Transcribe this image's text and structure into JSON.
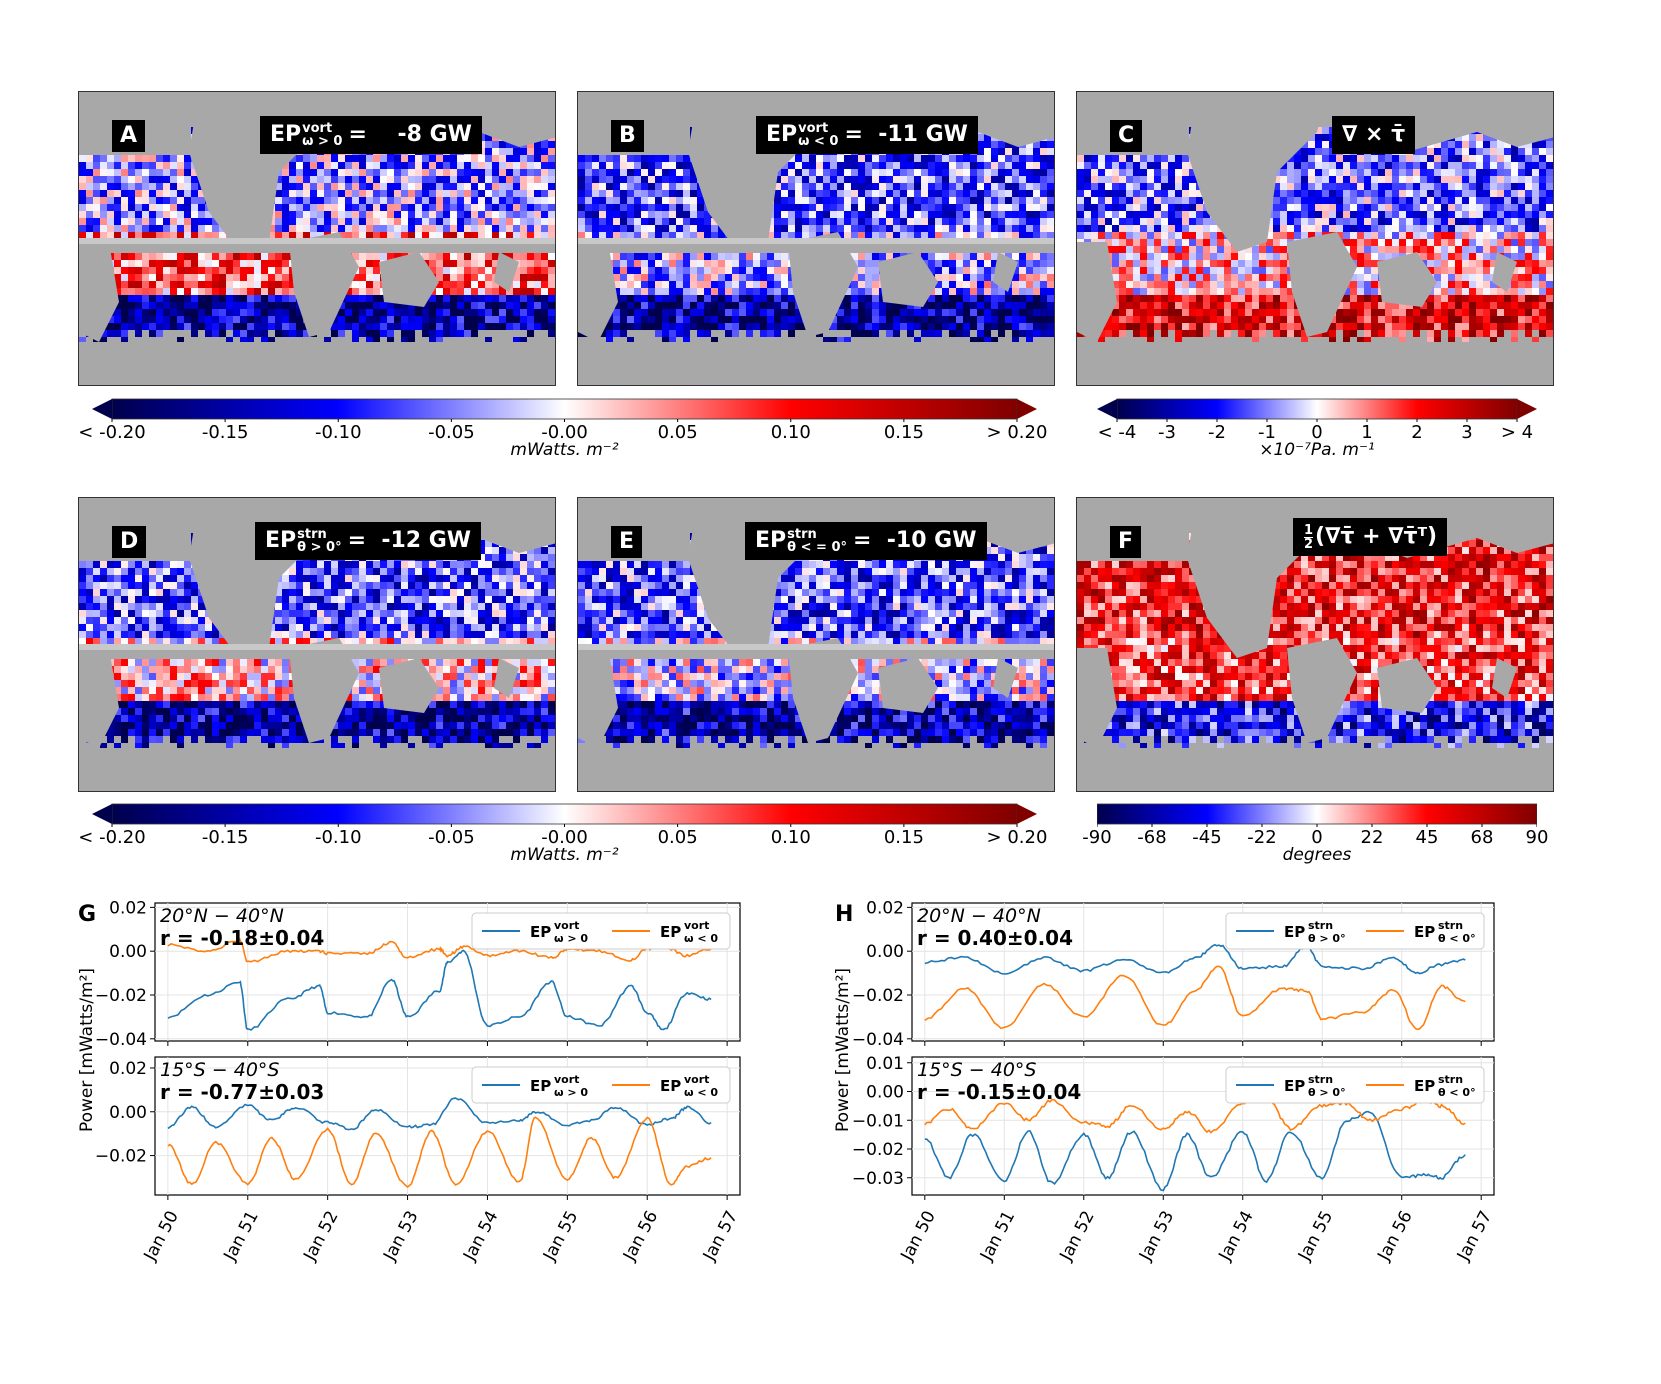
{
  "panels": {
    "A": {
      "letter": "A",
      "ep": "EP",
      "sup": "vort",
      "sub": "ω > 0",
      "eq": "=",
      "value": "-8 GW"
    },
    "B": {
      "letter": "B",
      "ep": "EP",
      "sup": "vort",
      "sub": "ω < 0",
      "eq": "=",
      "value": "-11 GW"
    },
    "C": {
      "letter": "C",
      "title": "∇ × τ̄"
    },
    "D": {
      "letter": "D",
      "ep": "EP",
      "sup": "strn",
      "sub": "θ > 0°",
      "eq": "=",
      "value": "-12 GW"
    },
    "E": {
      "letter": "E",
      "ep": "EP",
      "sup": "strn",
      "sub": "θ < = 0°",
      "eq": "=",
      "value": "-10 GW"
    },
    "F": {
      "letter": "F",
      "title_frac_num": "1",
      "title_frac_den": "2",
      "title": "(∇τ̄ + ∇τ̄ᵀ)"
    },
    "G": {
      "letter": "G"
    },
    "H": {
      "letter": "H"
    }
  },
  "colorbars": {
    "ep_top": {
      "ticks": [
        "< -0.20",
        "-0.15",
        "-0.10",
        "-0.05",
        "-0.00",
        "0.05",
        "0.10",
        "0.15",
        "> 0.20"
      ],
      "label": "mWatts. m⁻²",
      "extend": "both"
    },
    "curl": {
      "ticks": [
        "< -4",
        "-3",
        "-2",
        "-1",
        "0",
        "1",
        "2",
        "3",
        "> 4"
      ],
      "label": "×10⁻⁷Pa. m⁻¹",
      "extend": "both"
    },
    "ep_mid": {
      "ticks": [
        "< -0.20",
        "-0.15",
        "-0.10",
        "-0.05",
        "-0.00",
        "0.05",
        "0.10",
        "0.15",
        "> 0.20"
      ],
      "label": "mWatts. m⁻²",
      "extend": "both"
    },
    "angle": {
      "ticks": [
        "-90",
        "-68",
        "-45",
        "-22",
        "0",
        "22",
        "45",
        "68",
        "90"
      ],
      "label": "degrees",
      "extend": "neither"
    }
  },
  "colors": {
    "blue_series": "#1f77b4",
    "orange_series": "#ff7f0e",
    "land": "#a8a8a8",
    "cmap": [
      "#00004c",
      "#0000ff",
      "#ffffff",
      "#ff0000",
      "#800000"
    ]
  },
  "chart_data": [
    {
      "type": "line",
      "panel": "G-top",
      "region": "20°N − 40°N",
      "r_text": "r = -0.18±0.04",
      "ylabel": "Power [mWatts/m²]",
      "ylim": [
        -0.041,
        0.022
      ],
      "yticks": [
        "0.02",
        "0.00",
        "−0.02",
        "−0.04"
      ],
      "ytick_values": [
        0.02,
        0.0,
        -0.02,
        -0.04
      ],
      "x": [
        50.0,
        50.5,
        50.9,
        51.0,
        51.5,
        51.9,
        52.0,
        52.5,
        52.8,
        53.0,
        53.4,
        53.5,
        53.7,
        54.0,
        54.4,
        54.8,
        55.0,
        55.4,
        55.8,
        56.0,
        56.2,
        56.5,
        56.8
      ],
      "series": [
        {
          "name": "EPvort ω>0",
          "label_main": "EP",
          "label_sup": "vort",
          "label_sub": "ω > 0",
          "color": "#1f77b4",
          "values": [
            -0.03,
            -0.02,
            -0.014,
            -0.036,
            -0.022,
            -0.016,
            -0.028,
            -0.03,
            -0.013,
            -0.03,
            -0.018,
            -0.005,
            0.0,
            -0.034,
            -0.03,
            -0.014,
            -0.03,
            -0.034,
            -0.016,
            -0.028,
            -0.036,
            -0.019,
            -0.022
          ]
        },
        {
          "name": "EPvort ω<0",
          "label_main": "EP",
          "label_sup": "vort",
          "label_sub": "ω < 0",
          "color": "#ff7f0e",
          "values": [
            0.003,
            0.0,
            0.005,
            -0.005,
            0.0,
            0.0,
            -0.001,
            -0.001,
            0.004,
            -0.003,
            0.001,
            -0.002,
            0.002,
            -0.002,
            0.0,
            -0.003,
            0.001,
            0.0,
            -0.004,
            0.001,
            0.002,
            -0.002,
            0.001
          ]
        }
      ]
    },
    {
      "type": "line",
      "panel": "G-bottom",
      "region": "15°S − 40°S",
      "r_text": "r = -0.77±0.03",
      "ylim": [
        -0.038,
        0.025
      ],
      "yticks": [
        "0.02",
        "0.00",
        "−0.02"
      ],
      "ytick_values": [
        0.02,
        0.0,
        -0.02
      ],
      "xticks": [
        "Jan 50",
        "Jan 51",
        "Jan 52",
        "Jan 53",
        "Jan 54",
        "Jan 55",
        "Jan 56",
        "Jan 57"
      ],
      "x": [
        50.0,
        50.3,
        50.6,
        51.0,
        51.3,
        51.6,
        52.0,
        52.3,
        52.6,
        53.0,
        53.3,
        53.6,
        54.0,
        54.4,
        54.6,
        55.0,
        55.3,
        55.6,
        56.0,
        56.3,
        56.5,
        56.8
      ],
      "series": [
        {
          "name": "EPvort ω>0",
          "color": "#1f77b4",
          "values": [
            -0.007,
            0.002,
            -0.007,
            0.003,
            -0.004,
            0.002,
            -0.005,
            -0.008,
            0.001,
            -0.007,
            -0.006,
            0.006,
            -0.005,
            -0.004,
            0.0,
            -0.006,
            -0.004,
            0.002,
            -0.006,
            -0.003,
            0.002,
            -0.005
          ]
        },
        {
          "name": "EPvort ω<0",
          "color": "#ff7f0e",
          "values": [
            -0.015,
            -0.033,
            -0.014,
            -0.033,
            -0.012,
            -0.031,
            -0.008,
            -0.033,
            -0.01,
            -0.034,
            -0.009,
            -0.033,
            -0.009,
            -0.032,
            -0.003,
            -0.031,
            -0.012,
            -0.03,
            -0.003,
            -0.033,
            -0.025,
            -0.021
          ]
        }
      ]
    },
    {
      "type": "line",
      "panel": "H-top",
      "region": "20°N − 40°N",
      "r_text": "r =  0.40±0.04",
      "ylabel": "Power [mWatts/m²]",
      "ylim": [
        -0.041,
        0.022
      ],
      "yticks": [
        "0.02",
        "0.00",
        "−0.02",
        "−0.04"
      ],
      "ytick_values": [
        0.02,
        0.0,
        -0.02,
        -0.04
      ],
      "x": [
        50.0,
        50.5,
        51.0,
        51.5,
        52.0,
        52.5,
        53.0,
        53.4,
        53.7,
        54.0,
        54.5,
        54.8,
        55.0,
        55.5,
        55.9,
        56.2,
        56.5,
        56.8
      ],
      "series": [
        {
          "name": "EPstrn θ>0°",
          "label_main": "EP",
          "label_sup": "strn",
          "label_sub": "θ > 0°",
          "color": "#1f77b4",
          "values": [
            -0.005,
            -0.003,
            -0.01,
            -0.003,
            -0.009,
            -0.004,
            -0.01,
            -0.003,
            0.003,
            -0.008,
            -0.007,
            0.002,
            -0.007,
            -0.008,
            -0.003,
            -0.01,
            -0.006,
            -0.004
          ]
        },
        {
          "name": "EPstrn θ<0°",
          "label_main": "EP",
          "label_sup": "strn",
          "label_sub": "θ < 0°",
          "color": "#ff7f0e",
          "values": [
            -0.031,
            -0.017,
            -0.035,
            -0.015,
            -0.03,
            -0.011,
            -0.034,
            -0.018,
            -0.007,
            -0.03,
            -0.017,
            -0.018,
            -0.031,
            -0.028,
            -0.018,
            -0.036,
            -0.016,
            -0.023
          ]
        }
      ]
    },
    {
      "type": "line",
      "panel": "H-bottom",
      "region": "15°S − 40°S",
      "r_text": "r = -0.15±0.04",
      "ylim": [
        -0.036,
        0.012
      ],
      "yticks": [
        "0.01",
        "0.00",
        "−0.01",
        "−0.02",
        "−0.03"
      ],
      "ytick_values": [
        0.01,
        0.0,
        -0.01,
        -0.02,
        -0.03
      ],
      "xticks": [
        "Jan 50",
        "Jan 51",
        "Jan 52",
        "Jan 53",
        "Jan 54",
        "Jan 55",
        "Jan 56",
        "Jan 57"
      ],
      "x": [
        50.0,
        50.3,
        50.6,
        51.0,
        51.3,
        51.6,
        52.0,
        52.3,
        52.6,
        53.0,
        53.3,
        53.6,
        54.0,
        54.3,
        54.6,
        55.0,
        55.3,
        55.6,
        56.0,
        56.3,
        56.5,
        56.8
      ],
      "series": [
        {
          "name": "EPstrn θ>0°",
          "color": "#1f77b4",
          "values": [
            -0.016,
            -0.03,
            -0.015,
            -0.031,
            -0.014,
            -0.032,
            -0.015,
            -0.03,
            -0.014,
            -0.034,
            -0.015,
            -0.03,
            -0.014,
            -0.031,
            -0.014,
            -0.03,
            -0.01,
            -0.007,
            -0.03,
            -0.029,
            -0.03,
            -0.022
          ]
        },
        {
          "name": "EPstrn θ<0°",
          "color": "#ff7f0e",
          "values": [
            -0.011,
            -0.006,
            -0.013,
            -0.004,
            -0.01,
            -0.003,
            -0.011,
            -0.012,
            -0.005,
            -0.013,
            -0.007,
            -0.014,
            -0.004,
            -0.002,
            -0.013,
            -0.005,
            -0.004,
            -0.01,
            -0.006,
            -0.003,
            -0.005,
            -0.011
          ]
        }
      ]
    }
  ]
}
